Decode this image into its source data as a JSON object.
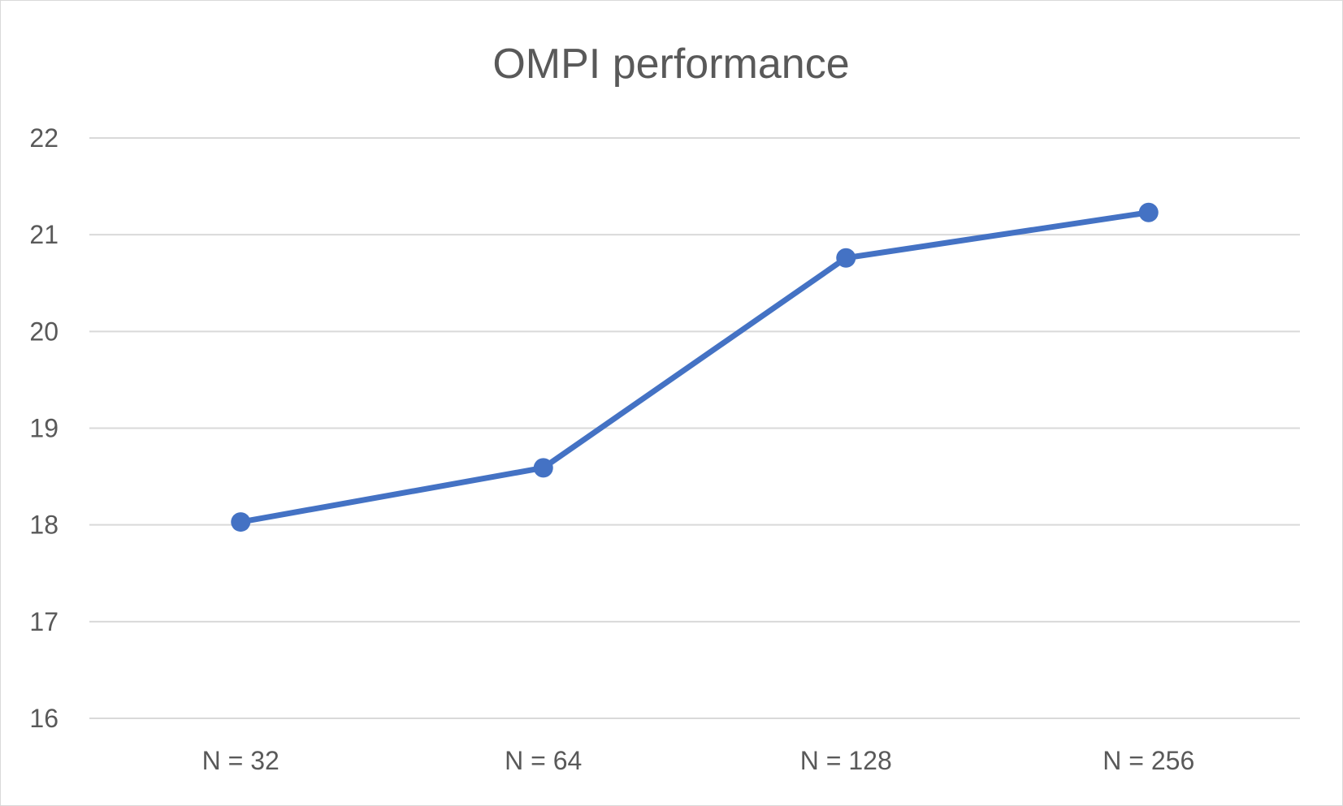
{
  "chart_data": {
    "type": "line",
    "title": "OMPI performance",
    "xlabel": "",
    "ylabel": "",
    "categories": [
      "N = 32",
      "N = 64",
      "N = 128",
      "N = 256"
    ],
    "series": [
      {
        "values": [
          18.03,
          18.59,
          20.76,
          21.23
        ],
        "color": "#4472c4"
      }
    ],
    "ylim": [
      16,
      22
    ],
    "yticks": [
      "16",
      "17",
      "18",
      "19",
      "20",
      "21",
      "22"
    ],
    "grid": true,
    "gridline_color": "#d9d9d9",
    "legend": "none"
  }
}
